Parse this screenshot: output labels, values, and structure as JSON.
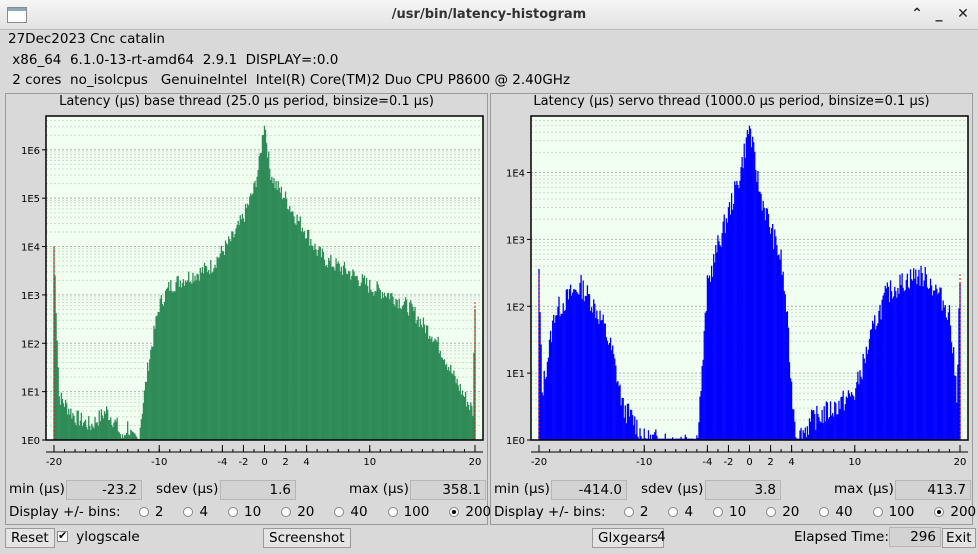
{
  "window": {
    "title": "/usr/bin/latency-histogram"
  },
  "info": {
    "line1": "27Dec2023 Cnc catalin",
    "line2": " x86_64  6.1.0-13-rt-amd64  2.9.1  DISPLAY=:0.0",
    "line3": " 2 cores  no_isolcpus   GenuineIntel  Intel(R) Core(TM)2 Duo CPU P8600 @ 2.40GHz"
  },
  "base": {
    "title": "Latency (µs) base thread (25.0 µs period, binsize=0.1 µs)",
    "min_label": "min (µs)",
    "min": "-23.2",
    "sdev_label": "sdev (µs)",
    "sdev": "1.6",
    "max_label": "max (µs)",
    "max": "358.1",
    "bins_label": "Display +/- bins:",
    "bins": [
      "2",
      "4",
      "10",
      "20",
      "40",
      "100",
      "200"
    ],
    "bins_selected": "200"
  },
  "servo": {
    "title": "Latency (µs) servo thread (1000.0 µs period, binsize=0.1 µs)",
    "min_label": "min (µs)",
    "min": "-414.0",
    "sdev_label": "sdev (µs)",
    "sdev": "3.8",
    "max_label": "max (µs)",
    "max": "413.7",
    "bins_label": "Display +/- bins:",
    "bins": [
      "2",
      "4",
      "10",
      "20",
      "40",
      "100",
      "200"
    ],
    "bins_selected": "200"
  },
  "controls": {
    "reset": "Reset",
    "ylogscale": "ylogscale",
    "ylogscale_checked": true,
    "screenshot": "Screenshot",
    "glxgears": "Glxgears",
    "glxgears_count": "4",
    "elapsed_label": "Elapsed Time:",
    "elapsed": "296",
    "exit": "Exit"
  },
  "colors": {
    "base_bars": "#2e8b57",
    "servo_bars": "#0000ff",
    "plot_bg": "#f0fff0",
    "overflow_marker": "#ff0000"
  },
  "chart_data": [
    {
      "type": "bar",
      "title": "Latency (µs) base thread (25.0 µs period, binsize=0.1 µs)",
      "yscale": "log",
      "xlim": [
        -20,
        20
      ],
      "ylim": [
        1,
        5000000
      ],
      "xticks": [
        "-20",
        "-10",
        "-4",
        "-2",
        "0",
        "2",
        "4",
        "10",
        "20"
      ],
      "xtick_values": [
        -20,
        -10,
        -4,
        -2,
        0,
        2,
        4,
        10,
        20
      ],
      "yticks": [
        "1E0",
        "1E1",
        "1E2",
        "1E3",
        "1E4",
        "1E5",
        "1E6"
      ],
      "grid": true,
      "envelope": {
        "x": [
          -20,
          -19.5,
          -18,
          -16.5,
          -15,
          -14,
          -13.5,
          -13,
          -12.5,
          -12,
          -11,
          -10,
          -9,
          -8,
          -7,
          -6,
          -5,
          -4,
          -3,
          -2,
          -1,
          -0.5,
          0,
          0.5,
          1,
          2,
          3,
          4,
          5,
          6,
          8,
          10,
          12,
          14,
          15,
          16,
          17,
          18,
          19,
          19.8,
          20
        ],
        "y": [
          10000,
          8,
          3,
          2,
          4,
          2,
          1,
          2,
          1,
          1,
          40,
          600,
          1500,
          2000,
          2500,
          3000,
          4000,
          8000,
          15000,
          40000,
          150000,
          500000,
          4000000,
          400000,
          200000,
          100000,
          40000,
          20000,
          8000,
          5000,
          3000,
          1500,
          1000,
          500,
          250,
          150,
          60,
          20,
          8,
          4,
          700
        ]
      }
    },
    {
      "type": "bar",
      "title": "Latency (µs) servo thread (1000.0 µs period, binsize=0.1 µs)",
      "yscale": "log",
      "xlim": [
        -20,
        20
      ],
      "ylim": [
        1,
        70000
      ],
      "xticks": [
        "-20",
        "-10",
        "-4",
        "-2",
        "0",
        "2",
        "4",
        "10",
        "20"
      ],
      "xtick_values": [
        -20,
        -10,
        -4,
        -2,
        0,
        2,
        4,
        10,
        20
      ],
      "yticks": [
        "1E0",
        "1E1",
        "1E2",
        "1E3",
        "1E4"
      ],
      "grid": true,
      "envelope": {
        "x": [
          -20,
          -19.7,
          -18.5,
          -17,
          -16,
          -15,
          -14,
          -13,
          -12,
          -11,
          -10,
          -8,
          -5,
          -4.5,
          -4,
          -3,
          -2,
          -1,
          -0.5,
          0,
          0.5,
          1,
          2,
          3,
          3.5,
          4,
          4.5,
          6,
          8,
          10,
          12,
          13,
          14,
          15,
          16,
          17,
          18,
          19,
          19.7,
          20
        ],
        "y": [
          300,
          5,
          80,
          150,
          200,
          120,
          60,
          20,
          3,
          2,
          1,
          1,
          1,
          10,
          200,
          800,
          2500,
          8000,
          20000,
          50000,
          15000,
          5000,
          1500,
          500,
          100,
          6,
          1,
          2,
          3,
          5,
          60,
          150,
          200,
          250,
          300,
          250,
          150,
          80,
          5,
          300
        ]
      }
    }
  ]
}
